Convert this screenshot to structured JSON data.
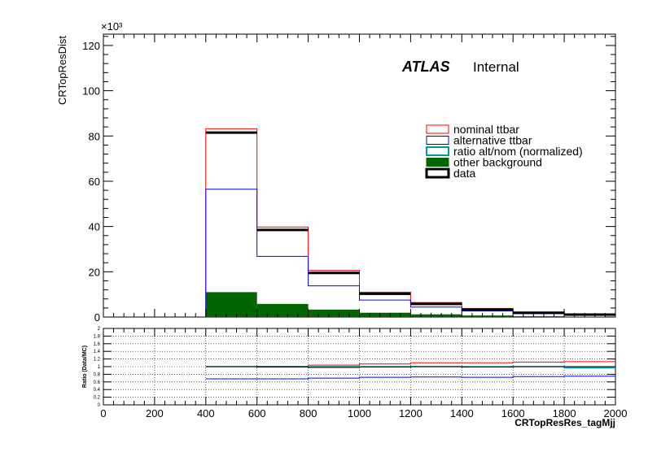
{
  "chart_data": [
    {
      "type": "bar",
      "histtype": "stacked-step",
      "bin_edges": [
        0,
        200,
        400,
        600,
        800,
        1000,
        1200,
        1400,
        1600,
        1800,
        2000
      ],
      "ylabel": "CRTopResDist",
      "y_multiplier_label": "×10³",
      "ylim": [
        0,
        125
      ],
      "y_ticks": [
        0,
        20,
        40,
        60,
        80,
        100,
        120
      ],
      "atlas_label": "ATLAS",
      "atlas_status": "Internal",
      "legend_position": "upper-right",
      "series": [
        {
          "name": "nominal ttbar",
          "style": "step",
          "color": "#ff0000",
          "values": [
            0,
            0,
            83.2,
            39.8,
            20.6,
            11.0,
            6.4,
            3.8,
            2.2,
            1.3
          ]
        },
        {
          "name": "alternative ttbar",
          "style": "step",
          "color": "#0000ff",
          "values": [
            0,
            0,
            56.5,
            26.8,
            13.8,
            7.5,
            4.4,
            2.7,
            1.5,
            0.9
          ]
        },
        {
          "name": "ratio alt/nom (normalized)",
          "style": "legend-only",
          "color": "#009999",
          "values": []
        },
        {
          "name": "other background",
          "style": "filled",
          "color": "#006600",
          "values": [
            0,
            0,
            11.0,
            5.8,
            3.3,
            1.9,
            1.2,
            0.7,
            0.4,
            0.2
          ]
        },
        {
          "name": "data",
          "style": "marker",
          "color": "#000000",
          "values": [
            0,
            0,
            81.5,
            38.5,
            19.5,
            10.3,
            5.8,
            3.3,
            1.9,
            1.1
          ]
        }
      ]
    },
    {
      "type": "line",
      "histtype": "ratio-step",
      "bin_edges": [
        400,
        600,
        800,
        1000,
        1200,
        1400,
        1600,
        1800,
        2000
      ],
      "xlabel": "CRTopResRes_tagMjj",
      "ylabel": "Ratio (Data/MC)",
      "xlim": [
        0,
        2000
      ],
      "x_ticks": [
        0,
        200,
        400,
        600,
        800,
        1000,
        1200,
        1400,
        1600,
        1800,
        2000
      ],
      "ylim": [
        0,
        2
      ],
      "y_ticks": [
        "0",
        "0.2",
        "0.4",
        "0.6",
        "0.8",
        "1",
        "1.2",
        "1.4",
        "1.6",
        "1.8",
        "2"
      ],
      "grid": true,
      "series": [
        {
          "name": "nominal ttbar",
          "color": "#ff0000",
          "values": [
            1.0,
            1.01,
            1.04,
            1.07,
            1.1,
            1.1,
            1.12,
            1.13
          ]
        },
        {
          "name": "alternative ttbar",
          "color": "#0000ff",
          "values": [
            0.68,
            0.68,
            0.7,
            0.72,
            0.73,
            0.72,
            0.74,
            0.75
          ]
        },
        {
          "name": "ratio alt/nom (normalized)",
          "color": "#009999",
          "values": [
            1.0,
            1.0,
            1.0,
            1.0,
            1.0,
            1.0,
            1.0,
            0.97
          ]
        },
        {
          "name": "data",
          "color": "#000000",
          "values": [
            1.0,
            0.99,
            0.98,
            0.99,
            1.0,
            0.99,
            1.0,
            1.0
          ]
        }
      ]
    }
  ]
}
